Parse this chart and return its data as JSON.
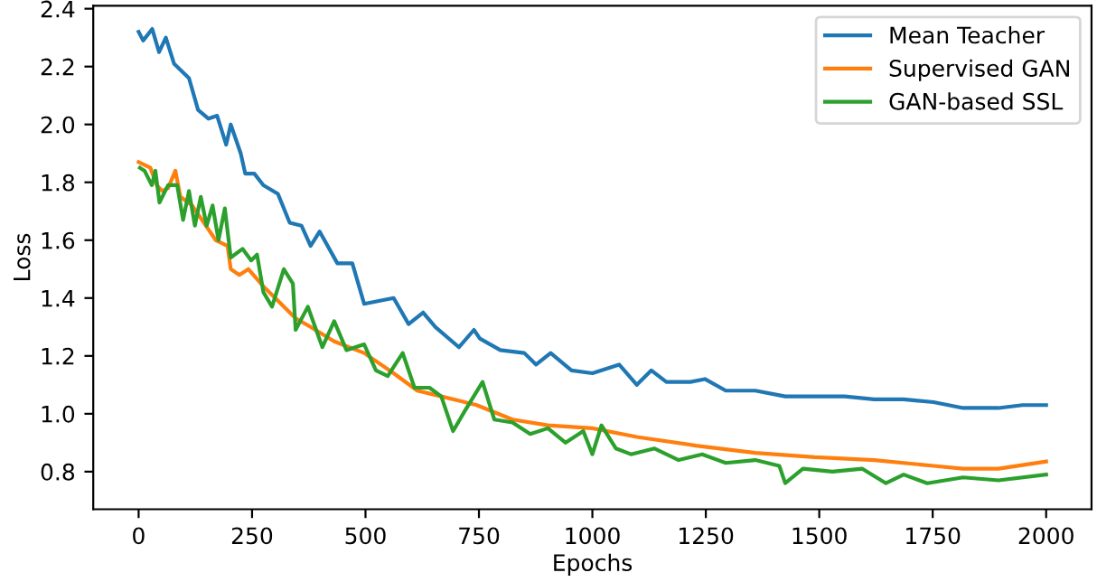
{
  "chart_data": {
    "type": "line",
    "xlabel": "Epochs",
    "ylabel": "Loss",
    "xlim": [
      -100,
      2100
    ],
    "xticks": [
      0,
      250,
      500,
      750,
      1000,
      1250,
      1500,
      1750,
      2000
    ],
    "ylim": [
      0.67,
      2.41
    ],
    "yticks": [
      0.8,
      {
        "value": 1.0,
        "label": "1.0"
      },
      1.2,
      1.4,
      1.6,
      1.8,
      {
        "value": 2.0,
        "label": "2.0"
      },
      2.2,
      2.4
    ],
    "grid": false,
    "legend": "top right",
    "marker": "none",
    "line_style": "solid",
    "series": [
      {
        "name": "Mean Teacher",
        "color": "#1f77b4",
        "x": [
          0,
          10,
          30,
          45,
          60,
          78,
          111,
          131,
          154,
          173,
          193,
          203,
          225,
          235,
          255,
          275,
          307,
          333,
          359,
          379,
          399,
          438,
          471,
          497,
          562,
          595,
          627,
          654,
          706,
          739,
          752,
          797,
          850,
          876,
          908,
          954,
          1000,
          1059,
          1098,
          1130,
          1163,
          1216,
          1248,
          1294,
          1359,
          1425,
          1490,
          1556,
          1621,
          1686,
          1752,
          1817,
          1895,
          1948,
          2000
        ],
        "values": [
          2.32,
          2.29,
          2.33,
          2.25,
          2.3,
          2.21,
          2.16,
          2.05,
          2.02,
          2.03,
          1.93,
          2.0,
          1.9,
          1.83,
          1.83,
          1.79,
          1.76,
          1.66,
          1.65,
          1.58,
          1.63,
          1.52,
          1.52,
          1.38,
          1.4,
          1.31,
          1.35,
          1.3,
          1.23,
          1.29,
          1.26,
          1.22,
          1.21,
          1.17,
          1.21,
          1.15,
          1.14,
          1.17,
          1.1,
          1.15,
          1.11,
          1.11,
          1.12,
          1.08,
          1.08,
          1.06,
          1.06,
          1.06,
          1.05,
          1.05,
          1.04,
          1.02,
          1.02,
          1.03,
          1.03
        ]
      },
      {
        "name": "Supervised GAN",
        "color": "#ff7f0e",
        "x": [
          0,
          26,
          40,
          52,
          65,
          81,
          92,
          118,
          144,
          170,
          196,
          203,
          222,
          242,
          275,
          301,
          346,
          379,
          431,
          497,
          562,
          614,
          667,
          745,
          824,
          902,
          1000,
          1098,
          1228,
          1359,
          1490,
          1621,
          1752,
          1817,
          1895,
          2000
        ],
        "values": [
          1.87,
          1.85,
          1.79,
          1.77,
          1.78,
          1.84,
          1.75,
          1.72,
          1.66,
          1.6,
          1.58,
          1.5,
          1.48,
          1.5,
          1.44,
          1.4,
          1.33,
          1.3,
          1.25,
          1.21,
          1.14,
          1.08,
          1.06,
          1.03,
          0.98,
          0.96,
          0.95,
          0.92,
          0.89,
          0.865,
          0.85,
          0.84,
          0.82,
          0.81,
          0.81,
          0.835
        ]
      },
      {
        "name": "GAN-based SSL",
        "color": "#2ca02c",
        "x": [
          3,
          13,
          29,
          37,
          46,
          65,
          85,
          98,
          111,
          124,
          137,
          150,
          163,
          176,
          190,
          203,
          229,
          248,
          261,
          275,
          294,
          320,
          340,
          346,
          373,
          405,
          431,
          458,
          497,
          523,
          549,
          582,
          608,
          641,
          667,
          693,
          719,
          758,
          784,
          824,
          863,
          902,
          941,
          980,
          1000,
          1020,
          1052,
          1085,
          1137,
          1190,
          1242,
          1294,
          1359,
          1412,
          1425,
          1464,
          1529,
          1595,
          1647,
          1686,
          1738,
          1817,
          1895,
          2000
        ],
        "values": [
          1.85,
          1.84,
          1.79,
          1.84,
          1.73,
          1.79,
          1.79,
          1.67,
          1.77,
          1.65,
          1.75,
          1.65,
          1.72,
          1.6,
          1.71,
          1.54,
          1.57,
          1.53,
          1.55,
          1.42,
          1.37,
          1.5,
          1.45,
          1.29,
          1.37,
          1.23,
          1.32,
          1.22,
          1.24,
          1.15,
          1.13,
          1.21,
          1.09,
          1.09,
          1.06,
          0.94,
          1.01,
          1.11,
          0.98,
          0.97,
          0.93,
          0.95,
          0.9,
          0.94,
          0.86,
          0.96,
          0.88,
          0.86,
          0.88,
          0.84,
          0.86,
          0.83,
          0.84,
          0.82,
          0.76,
          0.81,
          0.8,
          0.81,
          0.76,
          0.79,
          0.76,
          0.78,
          0.77,
          0.79
        ]
      }
    ]
  }
}
